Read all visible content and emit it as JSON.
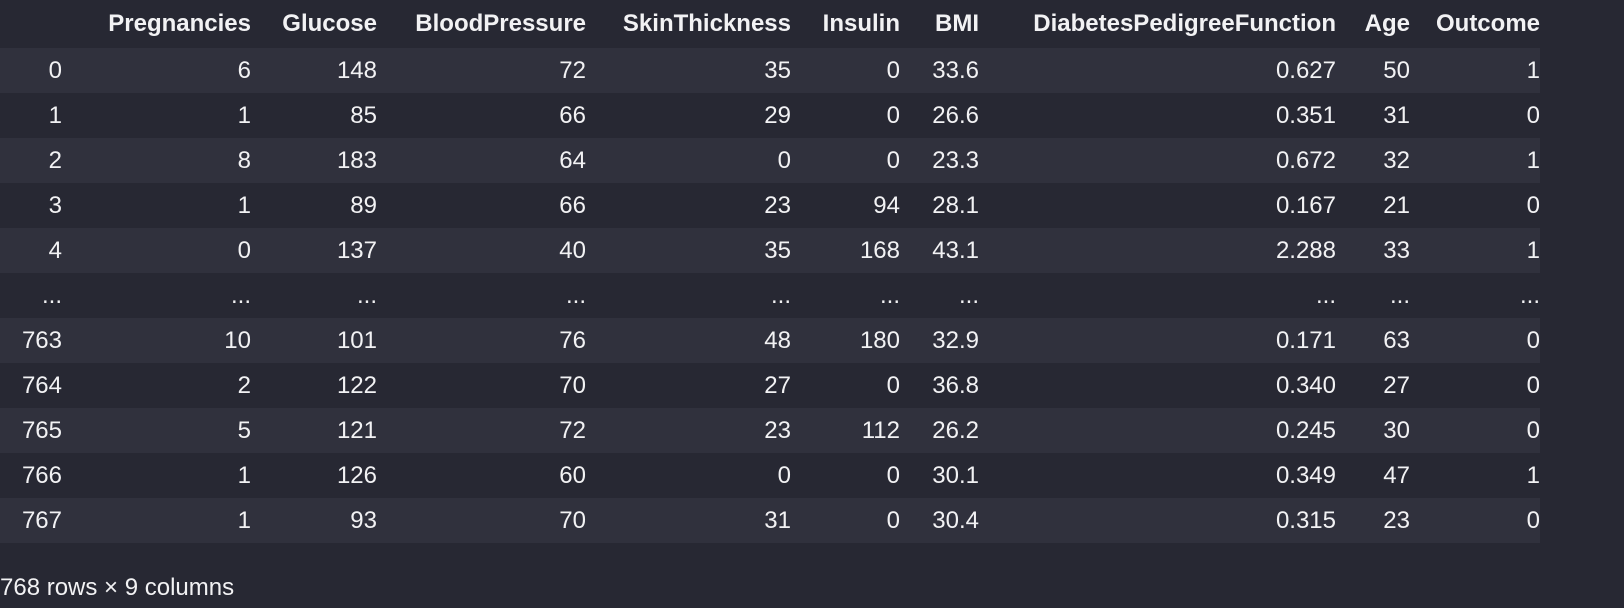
{
  "dataframe": {
    "columns": [
      "",
      "Pregnancies",
      "Glucose",
      "BloodPressure",
      "SkinThickness",
      "Insulin",
      "BMI",
      "DiabetesPedigreeFunction",
      "Age",
      "Outcome"
    ],
    "rows": [
      [
        "0",
        "6",
        "148",
        "72",
        "35",
        "0",
        "33.6",
        "0.627",
        "50",
        "1"
      ],
      [
        "1",
        "1",
        "85",
        "66",
        "29",
        "0",
        "26.6",
        "0.351",
        "31",
        "0"
      ],
      [
        "2",
        "8",
        "183",
        "64",
        "0",
        "0",
        "23.3",
        "0.672",
        "32",
        "1"
      ],
      [
        "3",
        "1",
        "89",
        "66",
        "23",
        "94",
        "28.1",
        "0.167",
        "21",
        "0"
      ],
      [
        "4",
        "0",
        "137",
        "40",
        "35",
        "168",
        "43.1",
        "2.288",
        "33",
        "1"
      ],
      [
        "...",
        "...",
        "...",
        "...",
        "...",
        "...",
        "...",
        "...",
        "...",
        "..."
      ],
      [
        "763",
        "10",
        "101",
        "76",
        "48",
        "180",
        "32.9",
        "0.171",
        "63",
        "0"
      ],
      [
        "764",
        "2",
        "122",
        "70",
        "27",
        "0",
        "36.8",
        "0.340",
        "27",
        "0"
      ],
      [
        "765",
        "5",
        "121",
        "72",
        "23",
        "112",
        "26.2",
        "0.245",
        "30",
        "0"
      ],
      [
        "766",
        "1",
        "126",
        "60",
        "0",
        "0",
        "30.1",
        "0.349",
        "47",
        "1"
      ],
      [
        "767",
        "1",
        "93",
        "70",
        "31",
        "0",
        "30.4",
        "0.315",
        "23",
        "0"
      ]
    ],
    "shape_text": "768 rows × 9 columns"
  },
  "colors": {
    "background": "#272833",
    "row_stripe": "#30313d",
    "text": "#f2f2f4"
  }
}
